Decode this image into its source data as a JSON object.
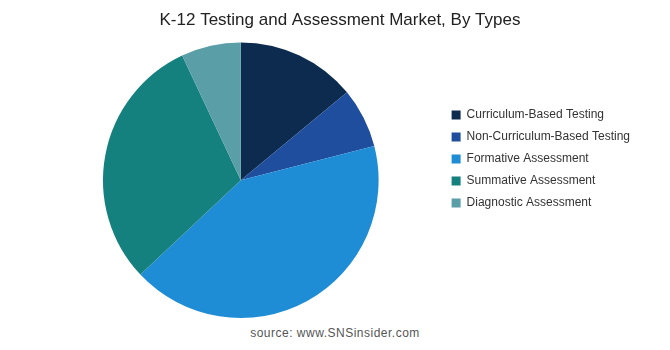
{
  "chart_data": {
    "type": "pie",
    "title": "K-12 Testing and Assessment Market, By Types",
    "categories": [
      "Curriculum-Based Testing",
      "Non-Curriculum-Based Testing",
      "Formative Assessment",
      "Summative Assessment",
      "Diagnostic Assessment"
    ],
    "values": [
      14,
      7,
      42,
      30,
      7
    ],
    "colors": [
      "#0d2b4e",
      "#1f4e9e",
      "#1f8dd6",
      "#15817f",
      "#5a9ea8"
    ],
    "legend": "right",
    "data_labels": false,
    "annotations": [
      "source: www.SNSinsider.com"
    ]
  }
}
